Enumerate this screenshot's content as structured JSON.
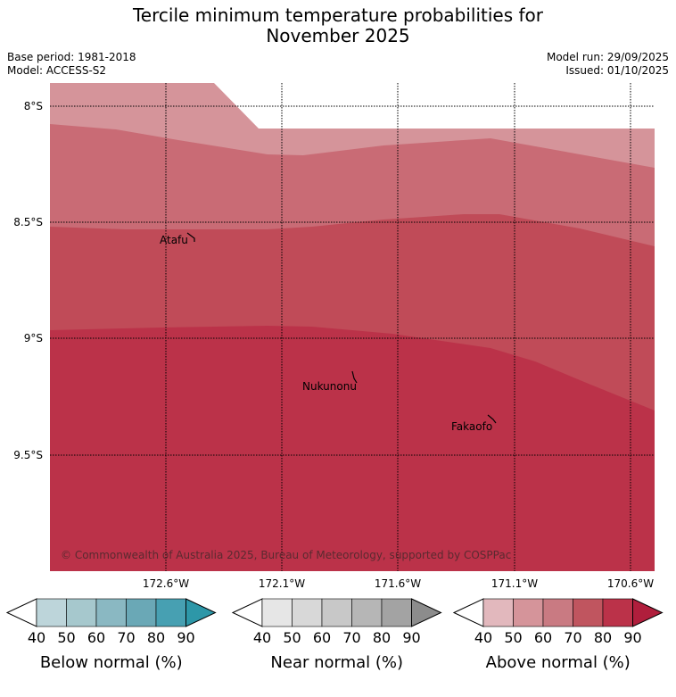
{
  "title_line1": "Tercile minimum temperature probabilities for",
  "title_line2": "November 2025",
  "base_period": "Base period: 1981-2018",
  "model": "Model: ACCESS-S2",
  "model_run": "Model run: 29/09/2025",
  "issued": "Issued: 01/10/2025",
  "map": {
    "lat_labels": [
      "8°S",
      "8.5°S",
      "9°S",
      "9.5°S"
    ],
    "lon_labels": [
      "172.6°W",
      "172.1°W",
      "171.6°W",
      "171.1°W",
      "170.6°W"
    ],
    "places": [
      "Atafu",
      "Nukunonu",
      "Fakaofo"
    ],
    "copyright": "© Commonwealth of Australia 2025, Bureau of Meteorology, supported by COSPPac",
    "zone_colors": [
      "#d5949a",
      "#c96b75",
      "#c04b58",
      "#bb3249"
    ]
  },
  "colorbars": [
    {
      "title": "Below normal (%)",
      "ticks": [
        "40",
        "50",
        "60",
        "70",
        "80",
        "90"
      ],
      "colors": [
        "#ffffff",
        "#bdd5da",
        "#a6c8cd",
        "#8ab8c2",
        "#6aa8b6",
        "#47a0b2",
        "#2d97a8"
      ]
    },
    {
      "title": "Near normal (%)",
      "ticks": [
        "40",
        "50",
        "60",
        "70",
        "80",
        "90"
      ],
      "colors": [
        "#ffffff",
        "#e6e6e6",
        "#d8d8d8",
        "#c8c8c8",
        "#b6b6b6",
        "#a3a3a3",
        "#8c8c8c"
      ]
    },
    {
      "title": "Above normal (%)",
      "ticks": [
        "40",
        "50",
        "60",
        "70",
        "80",
        "90"
      ],
      "colors": [
        "#ffffff",
        "#e2b8bd",
        "#d5949a",
        "#c97a82",
        "#c0555f",
        "#bb3249",
        "#b01e3c"
      ]
    }
  ]
}
